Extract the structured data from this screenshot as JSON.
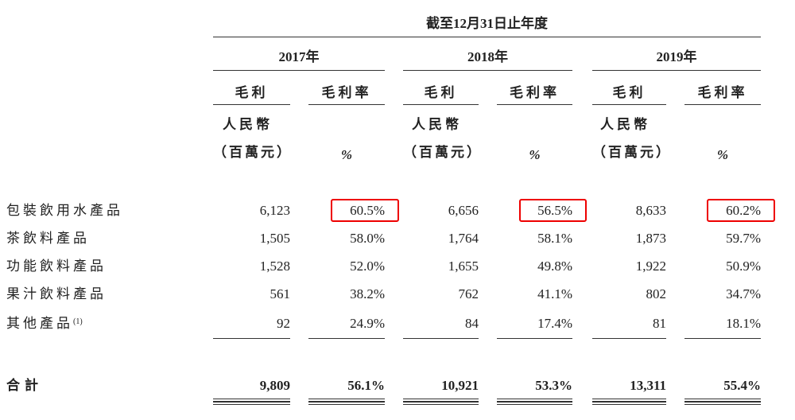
{
  "header": {
    "period": "截至12月31日止年度",
    "years": [
      "2017年",
      "2018年",
      "2019年"
    ],
    "columns": [
      "毛利",
      "毛利率"
    ],
    "currency": "人民幣",
    "unit": "（百萬元）",
    "percent": "%"
  },
  "rows": [
    {
      "label": "包裝飲用水產品",
      "cells": [
        "6,123",
        "60.5%",
        "6,656",
        "56.5%",
        "8,633",
        "60.2%"
      ],
      "highlighted": true
    },
    {
      "label": "茶飲料產品",
      "cells": [
        "1,505",
        "58.0%",
        "1,764",
        "58.1%",
        "1,873",
        "59.7%"
      ]
    },
    {
      "label": "功能飲料產品",
      "cells": [
        "1,528",
        "52.0%",
        "1,655",
        "49.8%",
        "1,922",
        "50.9%"
      ]
    },
    {
      "label": "果汁飲料產品",
      "cells": [
        "561",
        "38.2%",
        "762",
        "41.1%",
        "802",
        "34.7%"
      ]
    },
    {
      "label": "其他產品",
      "note": "(1)",
      "cells": [
        "92",
        "24.9%",
        "84",
        "17.4%",
        "81",
        "18.1%"
      ]
    }
  ],
  "total": {
    "label": "合計",
    "cells": [
      "9,809",
      "56.1%",
      "10,921",
      "53.3%",
      "13,311",
      "55.4%"
    ]
  }
}
